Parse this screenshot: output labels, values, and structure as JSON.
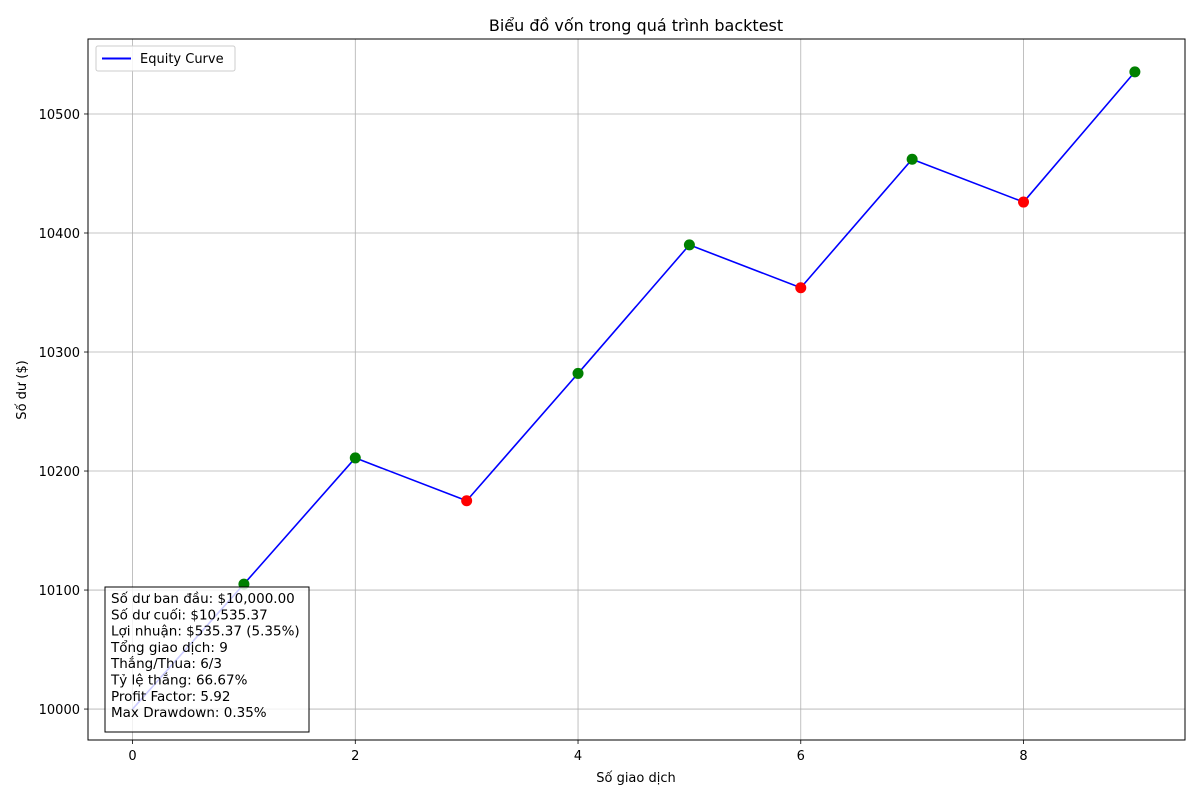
{
  "chart_data": {
    "type": "line",
    "title": "Biểu đồ vốn trong quá trình backtest",
    "xlabel": "Số giao dịch",
    "ylabel": "Số dư ($)",
    "xlim": [
      -0.4,
      9.45
    ],
    "ylim": [
      9974,
      10563
    ],
    "x_ticks": [
      0,
      2,
      4,
      6,
      8
    ],
    "y_ticks": [
      10000,
      10100,
      10200,
      10300,
      10400,
      10500
    ],
    "grid": true,
    "legend_position": "top-left",
    "series": [
      {
        "name": "Equity Curve",
        "color": "#0000ff",
        "x": [
          0,
          1,
          2,
          3,
          4,
          5,
          6,
          7,
          8,
          9
        ],
        "y": [
          10000,
          10105,
          10211,
          10175,
          10282,
          10390,
          10354,
          10462,
          10426,
          10535.37
        ]
      }
    ],
    "markers": [
      {
        "x": 1,
        "y": 10105,
        "result": "win"
      },
      {
        "x": 2,
        "y": 10211,
        "result": "win"
      },
      {
        "x": 3,
        "y": 10175,
        "result": "loss"
      },
      {
        "x": 4,
        "y": 10282,
        "result": "win"
      },
      {
        "x": 5,
        "y": 10390,
        "result": "win"
      },
      {
        "x": 6,
        "y": 10354,
        "result": "loss"
      },
      {
        "x": 7,
        "y": 10462,
        "result": "win"
      },
      {
        "x": 8,
        "y": 10426,
        "result": "loss"
      },
      {
        "x": 9,
        "y": 10535.37,
        "result": "win"
      }
    ],
    "marker_colors": {
      "win": "#008000",
      "loss": "#ff0000"
    },
    "stats": [
      "Số dư ban đầu: $10,000.00",
      "Số dư cuối: $10,535.37",
      "Lợi nhuận: $535.37 (5.35%)",
      "Tổng giao dịch: 9",
      "Thắng/Thua: 6/3",
      "Tỷ lệ thắng: 66.67%",
      "Profit Factor: 5.92",
      "Max Drawdown: 0.35%"
    ]
  }
}
